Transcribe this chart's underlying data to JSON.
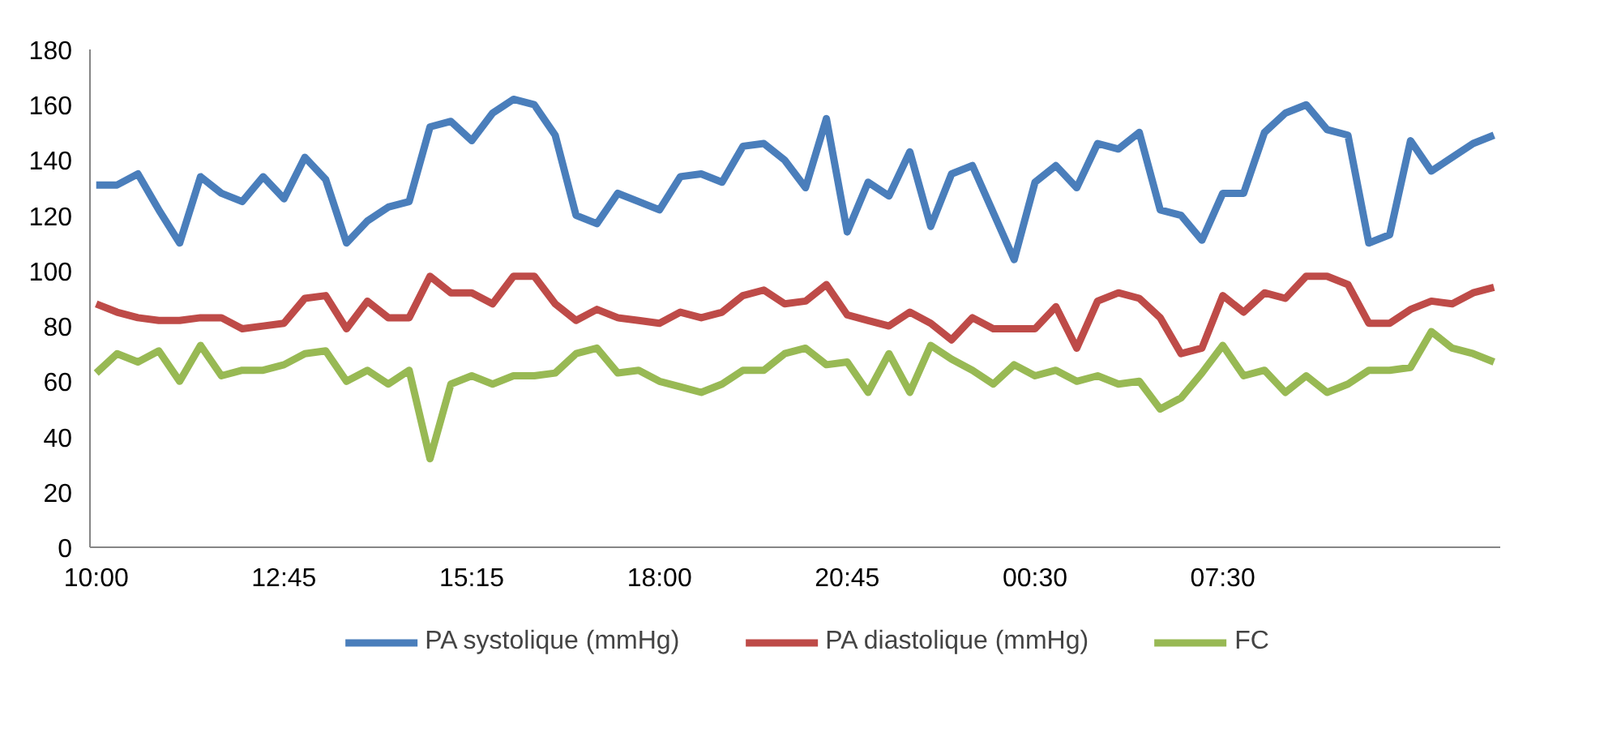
{
  "chart_data": {
    "type": "line",
    "categories": [
      "10:00",
      null,
      null,
      null,
      null,
      null,
      null,
      null,
      null,
      "12:45",
      null,
      null,
      null,
      null,
      null,
      null,
      null,
      null,
      "15:15",
      null,
      null,
      null,
      null,
      null,
      null,
      null,
      null,
      "18:00",
      null,
      null,
      null,
      null,
      null,
      null,
      null,
      null,
      "20:45",
      null,
      null,
      null,
      null,
      null,
      null,
      null,
      null,
      "00:30",
      null,
      null,
      null,
      null,
      null,
      null,
      null,
      null,
      "07:30",
      null,
      null,
      null,
      null,
      null,
      null,
      null,
      null,
      null,
      null,
      null,
      null,
      null
    ],
    "ylim": [
      0,
      180
    ],
    "yticks": [
      0,
      20,
      40,
      60,
      80,
      100,
      120,
      140,
      160,
      180
    ],
    "grid": false,
    "legend": "bottom",
    "marker": "none",
    "line_style": "solid",
    "series": [
      {
        "name": "PA systolique (mmHg)",
        "color": "#4a7ebb",
        "values": [
          131,
          131,
          135,
          122,
          110,
          134,
          128,
          125,
          134,
          126,
          141,
          133,
          110,
          118,
          123,
          125,
          152,
          154,
          147,
          157,
          162,
          160,
          149,
          120,
          117,
          128,
          125,
          122,
          134,
          135,
          132,
          145,
          146,
          140,
          130,
          155,
          114,
          132,
          127,
          143,
          116,
          135,
          138,
          121,
          104,
          132,
          138,
          130,
          146,
          144,
          150,
          122,
          120,
          111,
          128,
          128,
          150,
          157,
          160,
          151,
          149,
          110,
          113,
          147,
          136,
          141,
          146,
          149
        ]
      },
      {
        "name": "PA diastolique (mmHg)",
        "color": "#be4b48",
        "values": [
          88,
          85,
          83,
          82,
          82,
          83,
          83,
          79,
          80,
          81,
          90,
          91,
          79,
          89,
          83,
          83,
          98,
          92,
          92,
          88,
          98,
          98,
          88,
          82,
          86,
          83,
          82,
          81,
          85,
          83,
          85,
          91,
          93,
          88,
          89,
          95,
          84,
          82,
          80,
          85,
          81,
          75,
          83,
          79,
          79,
          79,
          87,
          72,
          89,
          92,
          90,
          83,
          70,
          72,
          91,
          85,
          92,
          90,
          98,
          98,
          95,
          81,
          81,
          86,
          89,
          88,
          92,
          94
        ]
      },
      {
        "name": "FC",
        "color": "#98b954",
        "values": [
          63,
          70,
          67,
          71,
          60,
          73,
          62,
          64,
          64,
          66,
          70,
          71,
          60,
          64,
          59,
          64,
          32,
          59,
          62,
          59,
          62,
          62,
          63,
          70,
          72,
          63,
          64,
          60,
          58,
          56,
          59,
          64,
          64,
          70,
          72,
          66,
          67,
          56,
          70,
          56,
          73,
          68,
          64,
          59,
          66,
          62,
          64,
          60,
          62,
          59,
          60,
          50,
          54,
          63,
          73,
          62,
          64,
          56,
          62,
          56,
          59,
          64,
          64,
          65,
          78,
          72,
          70,
          67
        ]
      }
    ]
  }
}
